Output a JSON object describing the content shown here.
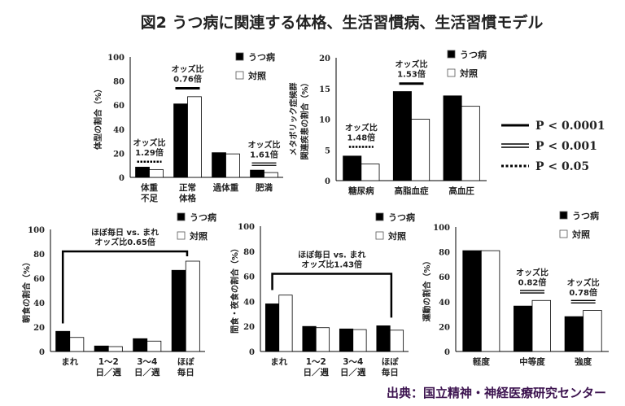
{
  "title": "図2 うつ病に関連する体格、生活習慣病、生活習慣モデル",
  "source": "出典：国立精神・神経医療研究センター",
  "colors": {
    "depression": "#000000",
    "control": "#ffffff",
    "title": "#333333",
    "source": "#3d1450"
  },
  "p_legend": [
    {
      "style": "solid",
      "label": "P < 0.0001"
    },
    {
      "style": "double",
      "label": "P < 0.001"
    },
    {
      "style": "dotted",
      "label": "P < 0.05"
    }
  ],
  "chart_data": [
    {
      "type": "bar",
      "ylabel": [
        "体型の割合（%）"
      ],
      "ylim": [
        0,
        100
      ],
      "yticks": [
        0,
        20,
        40,
        60,
        80,
        100
      ],
      "categories": [
        [
          "体重",
          "不足"
        ],
        [
          "正常",
          "体格"
        ],
        [
          "過体重"
        ],
        [
          "肥満"
        ]
      ],
      "series": [
        {
          "name": "うつ病",
          "values": [
            8.5,
            61,
            20.5,
            6
          ]
        },
        {
          "name": "対照",
          "values": [
            6.5,
            67,
            19.5,
            4
          ]
        }
      ],
      "annotations": [
        {
          "category": 0,
          "y": 13,
          "lines": [
            "オッズ比",
            "1.29倍"
          ],
          "style": "dotted"
        },
        {
          "category": 1,
          "y": 74,
          "lines": [
            "オッズ比",
            "0.76倍"
          ],
          "style": "solid"
        },
        {
          "category": 3,
          "y": 11,
          "lines": [
            "オッズ比",
            "1.61倍"
          ],
          "style": "double"
        }
      ]
    },
    {
      "type": "bar",
      "ylabel": [
        "メタボリック症候群",
        "関連疾患の割合（%）"
      ],
      "ylim": [
        0,
        20
      ],
      "yticks": [
        0,
        5,
        10,
        15,
        20
      ],
      "categories": [
        [
          "糖尿病"
        ],
        [
          "高脂血症"
        ],
        [
          "高血圧"
        ]
      ],
      "series": [
        {
          "name": "うつ病",
          "values": [
            4,
            14.5,
            13.8
          ]
        },
        {
          "name": "対照",
          "values": [
            2.7,
            10,
            12.1
          ]
        }
      ],
      "annotations": [
        {
          "category": 0,
          "y": 5.5,
          "lines": [
            "オッズ比",
            "1.48倍"
          ],
          "style": "dotted"
        },
        {
          "category": 1,
          "y": 15.8,
          "lines": [
            "オッズ比",
            "1.53倍"
          ],
          "style": "solid"
        }
      ]
    },
    {
      "type": "bar",
      "ylabel": [
        "朝食の割合（%）"
      ],
      "ylim": [
        0,
        100
      ],
      "yticks": [
        0,
        20,
        40,
        60,
        80,
        100
      ],
      "categories": [
        [
          "まれ"
        ],
        [
          "1～2",
          "日／週"
        ],
        [
          "3～4",
          "日／週"
        ],
        [
          "ほぼ",
          "毎日"
        ]
      ],
      "series": [
        {
          "name": "うつ病",
          "values": [
            16.5,
            4.5,
            10.5,
            66.5
          ]
        },
        {
          "name": "対照",
          "values": [
            11.5,
            4,
            8.5,
            74
          ]
        }
      ],
      "brackets": [
        {
          "from": 0,
          "to": 3,
          "y": 82,
          "from_y": 23,
          "to_y": 78,
          "lines": [
            "ほぼ毎日 vs. まれ",
            "オッズ比0.65倍"
          ],
          "style": "solid"
        }
      ]
    },
    {
      "type": "bar",
      "ylabel": [
        "間食・夜食の割合（%）"
      ],
      "ylim": [
        0,
        100
      ],
      "yticks": [
        0,
        20,
        40,
        60,
        80,
        100
      ],
      "categories": [
        [
          "まれ"
        ],
        [
          "1～2",
          "日／週"
        ],
        [
          "3～4",
          "日／週"
        ],
        [
          "ほぼ",
          "毎日"
        ]
      ],
      "series": [
        {
          "name": "うつ病",
          "values": [
            38,
            20,
            18,
            20.5
          ]
        },
        {
          "name": "対照",
          "values": [
            45,
            19,
            17.5,
            17
          ]
        }
      ],
      "brackets": [
        {
          "from": 0,
          "to": 3,
          "y": 62,
          "from_y": 49,
          "to_y": 27,
          "lines": [
            "ほぼ毎日 vs. まれ",
            "オッズ比1.43倍"
          ],
          "style": "solid"
        }
      ]
    },
    {
      "type": "bar",
      "ylabel": [
        "運動の割合（%）"
      ],
      "ylim": [
        0,
        100
      ],
      "yticks": [
        0,
        20,
        40,
        60,
        80,
        100
      ],
      "categories": [
        [
          "軽度"
        ],
        [
          "中等度"
        ],
        [
          "強度"
        ]
      ],
      "series": [
        {
          "name": "うつ病",
          "values": [
            81,
            36.5,
            28
          ]
        },
        {
          "name": "対照",
          "values": [
            81,
            41,
            33
          ]
        }
      ],
      "annotations": [
        {
          "category": 1,
          "y": 48,
          "lines": [
            "オッズ比",
            "0.82倍"
          ],
          "style": "double"
        },
        {
          "category": 2,
          "y": 40,
          "lines": [
            "オッズ比",
            "0.78倍"
          ],
          "style": "double"
        }
      ]
    }
  ]
}
